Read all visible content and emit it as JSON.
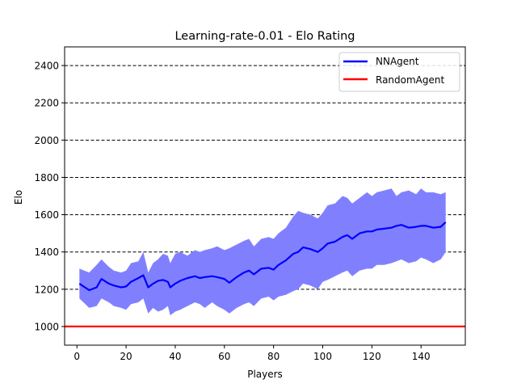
{
  "chart_data": {
    "type": "line",
    "title": "Learning-rate-0.01 - Elo Rating",
    "xlabel": "Players",
    "ylabel": "Elo",
    "xlim": [
      -5,
      158
    ],
    "ylim": [
      900,
      2500
    ],
    "xticks": [
      0,
      20,
      40,
      60,
      80,
      100,
      120,
      140
    ],
    "yticks": [
      1000,
      1200,
      1400,
      1600,
      1800,
      2000,
      2200,
      2400
    ],
    "xtick_labels": [
      "0",
      "20",
      "40",
      "60",
      "80",
      "100",
      "120",
      "140"
    ],
    "ytick_labels": [
      "1000",
      "1200",
      "1400",
      "1600",
      "1800",
      "2000",
      "2200",
      "2400"
    ],
    "grid": "horizontal dashed",
    "legend_position": "top-right",
    "series": [
      {
        "name": "NNAgent",
        "color": "#0000ff",
        "band_color": "#8080ff",
        "x": [
          1,
          5,
          8,
          10,
          13,
          15,
          18,
          20,
          22,
          25,
          27,
          29,
          31,
          33,
          35,
          37,
          38,
          40,
          42,
          45,
          48,
          50,
          52,
          55,
          57,
          60,
          62,
          65,
          68,
          70,
          72,
          75,
          78,
          80,
          82,
          85,
          88,
          90,
          92,
          95,
          98,
          100,
          102,
          105,
          108,
          110,
          112,
          115,
          118,
          120,
          122,
          125,
          128,
          130,
          132,
          135,
          138,
          140,
          142,
          145,
          148,
          150
        ],
        "values": [
          1230,
          1195,
          1210,
          1255,
          1230,
          1220,
          1210,
          1215,
          1240,
          1260,
          1275,
          1210,
          1230,
          1245,
          1250,
          1240,
          1210,
          1230,
          1245,
          1260,
          1270,
          1260,
          1265,
          1270,
          1265,
          1255,
          1235,
          1265,
          1290,
          1300,
          1280,
          1310,
          1315,
          1305,
          1330,
          1355,
          1390,
          1400,
          1425,
          1415,
          1400,
          1420,
          1445,
          1455,
          1480,
          1490,
          1470,
          1500,
          1510,
          1510,
          1520,
          1525,
          1530,
          1540,
          1545,
          1530,
          1535,
          1540,
          1540,
          1530,
          1535,
          1560
        ],
        "upper": [
          1310,
          1290,
          1330,
          1360,
          1320,
          1300,
          1290,
          1300,
          1340,
          1350,
          1400,
          1290,
          1340,
          1360,
          1390,
          1380,
          1340,
          1390,
          1400,
          1380,
          1410,
          1400,
          1410,
          1420,
          1430,
          1410,
          1420,
          1440,
          1460,
          1470,
          1430,
          1470,
          1480,
          1470,
          1500,
          1530,
          1590,
          1620,
          1610,
          1600,
          1580,
          1610,
          1650,
          1660,
          1700,
          1690,
          1660,
          1690,
          1720,
          1700,
          1720,
          1730,
          1740,
          1700,
          1720,
          1730,
          1710,
          1740,
          1720,
          1720,
          1710,
          1720
        ],
        "lower": [
          1150,
          1100,
          1110,
          1150,
          1130,
          1110,
          1100,
          1090,
          1120,
          1130,
          1150,
          1070,
          1100,
          1080,
          1090,
          1110,
          1060,
          1080,
          1090,
          1110,
          1130,
          1120,
          1100,
          1130,
          1110,
          1090,
          1070,
          1100,
          1120,
          1130,
          1110,
          1150,
          1160,
          1140,
          1160,
          1170,
          1190,
          1200,
          1230,
          1220,
          1200,
          1240,
          1250,
          1270,
          1290,
          1300,
          1270,
          1300,
          1310,
          1310,
          1330,
          1330,
          1340,
          1350,
          1360,
          1340,
          1350,
          1370,
          1360,
          1340,
          1360,
          1400
        ]
      },
      {
        "name": "RandomAgent",
        "color": "#ff0000",
        "x": [
          -5,
          158
        ],
        "values": [
          1000,
          1000
        ]
      }
    ]
  }
}
